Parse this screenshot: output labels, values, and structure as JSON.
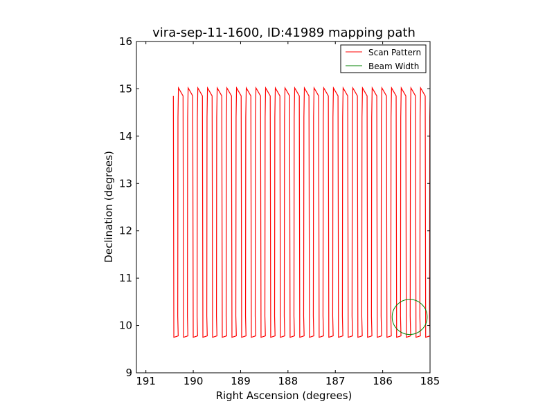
{
  "chart_data": {
    "type": "line",
    "title": "vira-sep-11-1600, ID:41989 mapping path",
    "xlabel": "Right Ascension (degrees)",
    "ylabel": "Declination (degrees)",
    "xlim": [
      191.2,
      185.0
    ],
    "ylim": [
      9,
      16
    ],
    "x_reversed": true,
    "xticks": [
      "191",
      "190",
      "189",
      "188",
      "187",
      "186",
      "185"
    ],
    "yticks": [
      "9",
      "10",
      "11",
      "12",
      "13",
      "14",
      "15",
      "16"
    ],
    "legend_position": "top-right",
    "series": [
      {
        "name": "Scan Pattern",
        "color": "#ff0000",
        "ra_start": 190.42,
        "ra_end": 185.0,
        "dec_top": 15.02,
        "dec_bottom": 9.75,
        "legs": 53
      },
      {
        "name": "Beam Width",
        "color": "#008000",
        "center": [
          185.43,
          10.18
        ],
        "radius": 0.37
      }
    ]
  }
}
